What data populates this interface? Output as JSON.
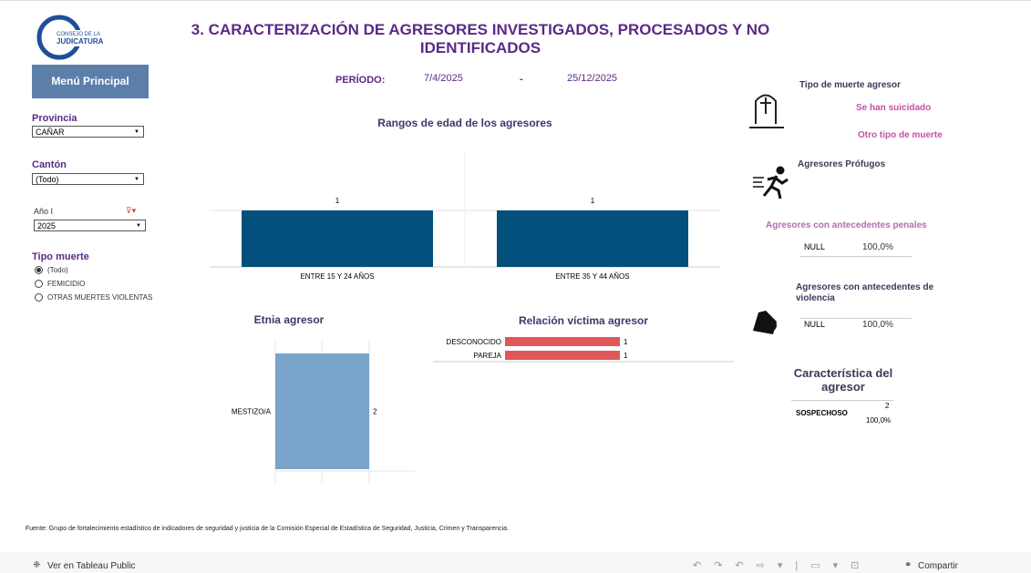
{
  "logo": {
    "line1": "CONSEJO DE LA",
    "line2": "JUDICATURA"
  },
  "title": "3. CARACTERIZACIÓN DE AGRESORES INVESTIGADOS, PROCESADOS Y NO IDENTIFICADOS",
  "menu_button": "Menú Principal",
  "period": {
    "label": "PERÍODO:",
    "start": "7/4/2025",
    "separator": "-",
    "end": "25/12/2025"
  },
  "filters": {
    "provincia": {
      "label": "Provincia",
      "value": "CAÑAR"
    },
    "canton": {
      "label": "Cantón",
      "value": "(Todo)"
    },
    "anio": {
      "label": "Año I",
      "value": "2025"
    },
    "tipo_muerte": {
      "label": "Tipo muerte",
      "options": [
        "(Todo)",
        "FEMICIDIO",
        "OTRAS MUERTES VIOLENTAS"
      ],
      "selected": 0
    }
  },
  "chart_data": [
    {
      "type": "bar",
      "title": "Rangos de edad de los agresores",
      "categories": [
        "ENTRE 15 Y 24 AÑOS",
        "ENTRE 35 Y 44 AÑOS"
      ],
      "values": [
        1,
        1
      ],
      "color": "#02507b"
    },
    {
      "type": "hbar",
      "title": "Etnia agresor",
      "categories": [
        "MESTIZO/A"
      ],
      "values": [
        2
      ],
      "color": "#7aa5cb"
    },
    {
      "type": "hbar",
      "title": "Relación víctima agresor",
      "categories": [
        "DESCONOCIDO",
        "PAREJA"
      ],
      "values": [
        1,
        1
      ],
      "color": "#e05759"
    }
  ],
  "side": {
    "tipo_muerte": {
      "title": "Tipo de muerte agresor",
      "items": [
        "Se han suicidado",
        "Otro tipo de muerte"
      ]
    },
    "profugos": {
      "title": "Agresores Prófugos"
    },
    "penales": {
      "title": "Agresores con antecedentes penales",
      "row": [
        "NULL",
        "100,0%"
      ]
    },
    "violencia": {
      "title": "Agresores con antecedentes de violencia",
      "row": [
        "NULL",
        "100,0%"
      ]
    },
    "caracteristica": {
      "title": "Característica del agresor",
      "row": {
        "name": "SOSPECHOSO",
        "count": "2",
        "percent": "100,0%"
      }
    }
  },
  "footer": "Fuente: Grupo de fortalecimiento estadístico de indicadores de seguridad y justicia de la Comisión Especial de Estadística de Seguridad, Justicia, Crimen y Transparencia.",
  "toolbar": {
    "view": "Ver en Tableau Public",
    "share": "Compartir"
  }
}
